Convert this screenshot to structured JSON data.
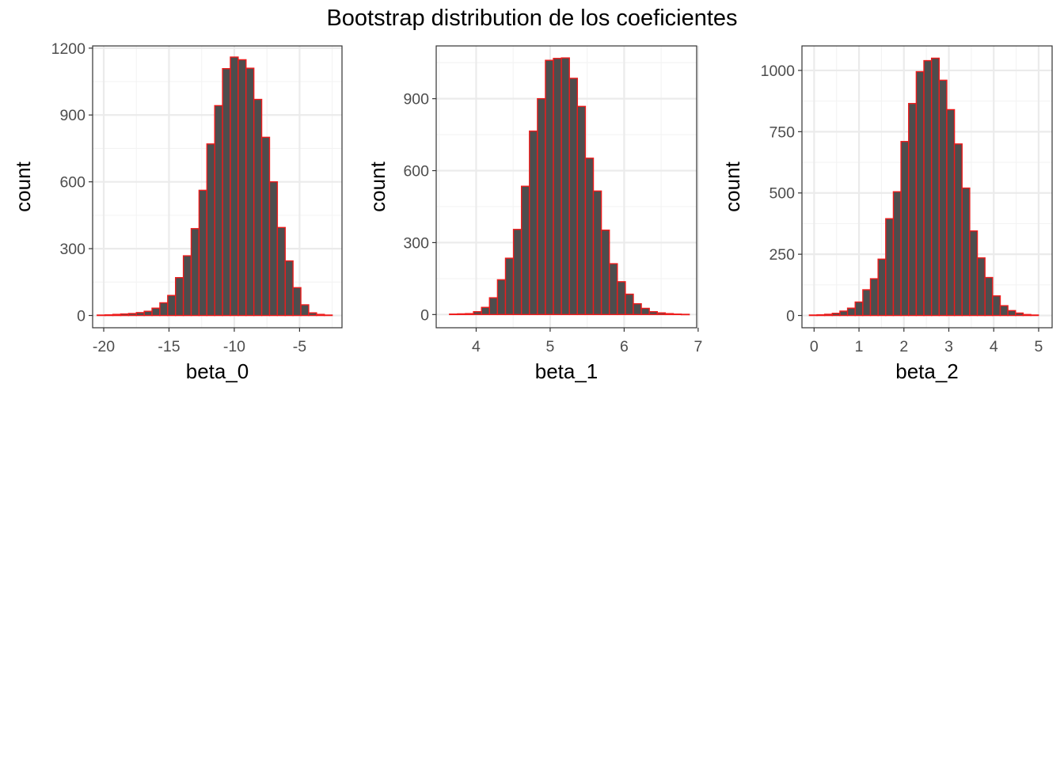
{
  "figure": {
    "title": "Bootstrap distribution de los coeficientes"
  },
  "style": {
    "bar_fill": "#4d4d4d",
    "bar_outline": "#ee1c1c",
    "panel_border": "#333333",
    "grid_major": "#ebebeb",
    "grid_minor": "#f3f3f3",
    "background": "#ffffff"
  },
  "chart_data": [
    {
      "type": "bar",
      "subtype": "histogram",
      "xlabel": "beta_0",
      "ylabel": "count",
      "xlim": [
        -20.85,
        -1.75
      ],
      "ylim": [
        -55,
        1210
      ],
      "xticks": [
        -20,
        -15,
        -10,
        -5
      ],
      "xtick_labels": [
        "-20",
        "-15",
        "-10",
        "-5"
      ],
      "yticks": [
        0,
        300,
        600,
        900,
        1200
      ],
      "ytick_labels": [
        "0",
        "300",
        "600",
        "900",
        "1200"
      ],
      "grid": true,
      "bin_start": -20.5,
      "bin_width": 0.6,
      "counts": [
        2,
        3,
        5,
        7,
        9,
        13,
        19,
        33,
        57,
        90,
        170,
        268,
        390,
        562,
        770,
        942,
        1108,
        1160,
        1148,
        1110,
        970,
        800,
        600,
        395,
        245,
        125,
        48,
        12,
        5,
        2
      ]
    },
    {
      "type": "bar",
      "subtype": "histogram",
      "xlabel": "beta_1",
      "ylabel": "count",
      "xlim": [
        3.46,
        6.98
      ],
      "ylim": [
        -55,
        1120
      ],
      "xticks": [
        4,
        5,
        6,
        7
      ],
      "xtick_labels": [
        "4",
        "5",
        "6",
        "7"
      ],
      "yticks": [
        0,
        300,
        600,
        900
      ],
      "ytick_labels": [
        "0",
        "300",
        "600",
        "900"
      ],
      "grid": true,
      "bin_start": 3.64,
      "bin_width": 0.108,
      "counts": [
        2,
        3,
        4,
        12,
        30,
        70,
        145,
        235,
        355,
        535,
        765,
        900,
        1060,
        1068,
        1070,
        985,
        868,
        652,
        515,
        352,
        212,
        137,
        85,
        45,
        26,
        12,
        7,
        4,
        2,
        1
      ]
    },
    {
      "type": "bar",
      "subtype": "histogram",
      "xlabel": "beta_2",
      "ylabel": "count",
      "xlim": [
        -0.27,
        5.3
      ],
      "ylim": [
        -50,
        1100
      ],
      "xticks": [
        0,
        1,
        2,
        3,
        4,
        5
      ],
      "xtick_labels": [
        "0",
        "1",
        "2",
        "3",
        "4",
        "5"
      ],
      "yticks": [
        0,
        250,
        500,
        750,
        1000
      ],
      "ytick_labels": [
        "0",
        "250",
        "500",
        "750",
        "1000"
      ],
      "grid": true,
      "bin_start": -0.105,
      "bin_width": 0.17,
      "counts": [
        2,
        3,
        5,
        9,
        18,
        30,
        55,
        105,
        150,
        230,
        395,
        505,
        710,
        865,
        995,
        1040,
        1050,
        960,
        840,
        700,
        520,
        345,
        235,
        155,
        80,
        40,
        20,
        10,
        4,
        2
      ]
    }
  ]
}
